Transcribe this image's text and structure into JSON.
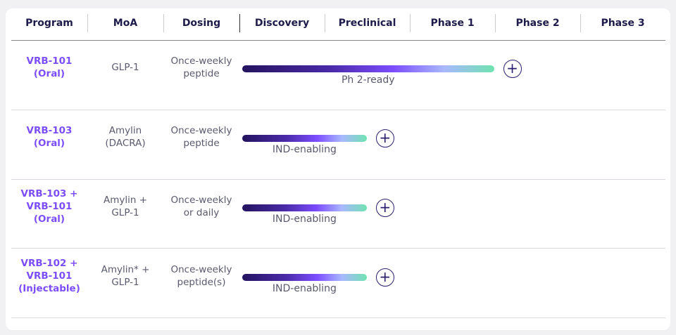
{
  "header": [
    "Program",
    "MoA",
    "Dosing",
    "Discovery",
    "Preclinical",
    "Phase 1",
    "Phase 2",
    "Phase 3"
  ],
  "rows": [
    {
      "program": "VRB-101\n(Oral)",
      "moa": "GLP-1",
      "dosing": "Once-weekly\npeptide",
      "stage": "Ph 2-ready",
      "progress": 3
    },
    {
      "program": "VRB-103\n(Oral)",
      "moa": "Amylin\n(DACRA)",
      "dosing": "Once-weekly\npeptide",
      "stage": "IND-enabling",
      "progress": 1.5
    },
    {
      "program": "VRB-103 +\nVRB-101\n(Oral)",
      "moa": "Amylin +\nGLP-1",
      "dosing": "Once-weekly\nor daily",
      "stage": "IND-enabling",
      "progress": 1.5
    },
    {
      "program": "VRB-102 +\nVRB-101\n(Injectable)",
      "moa": "Amylin* +\nGLP-1",
      "dosing": "Once-weekly\npeptide(s)",
      "stage": "IND-enabling",
      "progress": 1.5
    }
  ]
}
